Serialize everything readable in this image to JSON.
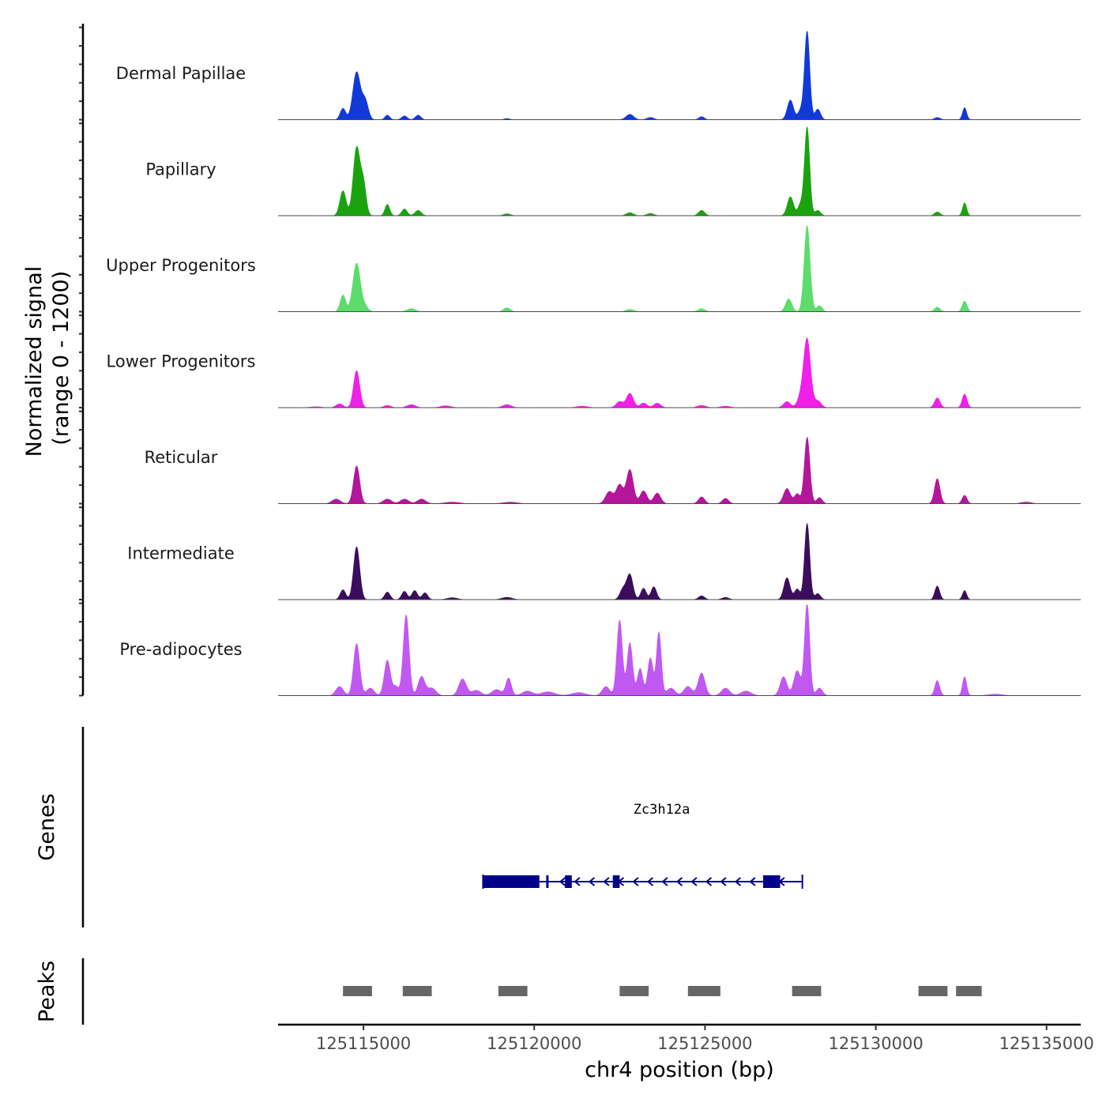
{
  "chart_data": {
    "type": "area",
    "title": "",
    "ylabel_line1": "Normalized signal",
    "ylabel_line2": "(range 0 - 1200)",
    "ylim": [
      0,
      1200
    ],
    "xlabel": "chr4 position (bp)",
    "xlim": [
      125112500,
      125136000
    ],
    "xticks": [
      125115000,
      125120000,
      125125000,
      125130000,
      125135000
    ],
    "xtick_labels": [
      "125115000",
      "125120000",
      "125125000",
      "125130000",
      "125135000"
    ],
    "signal_range": [
      125112500,
      125136000
    ],
    "series": [
      {
        "name": "Dermal Papillae",
        "color": "#1239d8",
        "peaks": [
          [
            125114400,
            150,
            80
          ],
          [
            125114800,
            630,
            110
          ],
          [
            125115050,
            250,
            90
          ],
          [
            125115700,
            60,
            70
          ],
          [
            125116200,
            50,
            80
          ],
          [
            125116600,
            60,
            80
          ],
          [
            125119200,
            15,
            80
          ],
          [
            125122800,
            70,
            110
          ],
          [
            125123400,
            30,
            100
          ],
          [
            125124900,
            40,
            80
          ],
          [
            125127500,
            260,
            90
          ],
          [
            125127800,
            120,
            80
          ],
          [
            125127990,
            1170,
            75
          ],
          [
            125128300,
            140,
            80
          ],
          [
            125131800,
            30,
            80
          ],
          [
            125132600,
            160,
            60
          ]
        ]
      },
      {
        "name": "Papillary",
        "color": "#1aa30e",
        "peaks": [
          [
            125114400,
            330,
            90
          ],
          [
            125114800,
            900,
            100
          ],
          [
            125115000,
            400,
            80
          ],
          [
            125115700,
            150,
            70
          ],
          [
            125116200,
            90,
            80
          ],
          [
            125116600,
            70,
            90
          ],
          [
            125119200,
            25,
            100
          ],
          [
            125122800,
            40,
            100
          ],
          [
            125123400,
            30,
            100
          ],
          [
            125124900,
            70,
            90
          ],
          [
            125127500,
            250,
            90
          ],
          [
            125127800,
            150,
            80
          ],
          [
            125127990,
            1170,
            75
          ],
          [
            125128300,
            70,
            80
          ],
          [
            125131800,
            50,
            80
          ],
          [
            125132600,
            170,
            60
          ]
        ]
      },
      {
        "name": "Upper Progenitors",
        "color": "#5cdc6c",
        "peaks": [
          [
            125114400,
            220,
            80
          ],
          [
            125114800,
            640,
            110
          ],
          [
            125115050,
            60,
            90
          ],
          [
            125116400,
            40,
            120
          ],
          [
            125119200,
            50,
            100
          ],
          [
            125122800,
            30,
            110
          ],
          [
            125124900,
            40,
            100
          ],
          [
            125127450,
            170,
            90
          ],
          [
            125127990,
            1140,
            85
          ],
          [
            125128350,
            80,
            80
          ],
          [
            125131800,
            60,
            80
          ],
          [
            125132600,
            140,
            70
          ]
        ]
      },
      {
        "name": "Lower Progenitors",
        "color": "#f020e8",
        "peaks": [
          [
            125113600,
            12,
            150
          ],
          [
            125114300,
            50,
            100
          ],
          [
            125114800,
            490,
            90
          ],
          [
            125115700,
            30,
            100
          ],
          [
            125116400,
            40,
            120
          ],
          [
            125117400,
            25,
            150
          ],
          [
            125119200,
            40,
            120
          ],
          [
            125121400,
            20,
            150
          ],
          [
            125122500,
            80,
            100
          ],
          [
            125122800,
            190,
            100
          ],
          [
            125123200,
            60,
            100
          ],
          [
            125123600,
            60,
            100
          ],
          [
            125124900,
            30,
            120
          ],
          [
            125125600,
            20,
            130
          ],
          [
            125127400,
            80,
            100
          ],
          [
            125127800,
            130,
            100
          ],
          [
            125127990,
            900,
            100
          ],
          [
            125128300,
            90,
            100
          ],
          [
            125131800,
            130,
            80
          ],
          [
            125132600,
            180,
            70
          ]
        ]
      },
      {
        "name": "Reticular",
        "color": "#b2169b",
        "peaks": [
          [
            125114200,
            60,
            120
          ],
          [
            125114800,
            500,
            90
          ],
          [
            125115700,
            60,
            120
          ],
          [
            125116200,
            60,
            120
          ],
          [
            125116700,
            60,
            120
          ],
          [
            125117600,
            20,
            200
          ],
          [
            125119300,
            20,
            200
          ],
          [
            125122200,
            160,
            110
          ],
          [
            125122500,
            250,
            100
          ],
          [
            125122800,
            450,
            100
          ],
          [
            125123200,
            170,
            100
          ],
          [
            125123600,
            140,
            100
          ],
          [
            125124900,
            90,
            90
          ],
          [
            125125600,
            70,
            90
          ],
          [
            125127400,
            200,
            100
          ],
          [
            125127700,
            130,
            80
          ],
          [
            125127990,
            880,
            80
          ],
          [
            125128350,
            80,
            80
          ],
          [
            125131800,
            330,
            80
          ],
          [
            125132600,
            110,
            70
          ],
          [
            125134400,
            20,
            150
          ]
        ]
      },
      {
        "name": "Intermediate",
        "color": "#3b0d5c",
        "peaks": [
          [
            125114400,
            130,
            80
          ],
          [
            125114800,
            700,
            90
          ],
          [
            125115700,
            100,
            80
          ],
          [
            125116200,
            110,
            80
          ],
          [
            125116500,
            120,
            80
          ],
          [
            125116800,
            90,
            80
          ],
          [
            125117600,
            25,
            150
          ],
          [
            125119200,
            30,
            150
          ],
          [
            125122600,
            140,
            90
          ],
          [
            125122800,
            330,
            90
          ],
          [
            125123200,
            150,
            80
          ],
          [
            125123500,
            170,
            80
          ],
          [
            125124900,
            50,
            90
          ],
          [
            125125600,
            30,
            100
          ],
          [
            125127400,
            290,
            90
          ],
          [
            125127700,
            140,
            80
          ],
          [
            125127990,
            1010,
            75
          ],
          [
            125128300,
            80,
            80
          ],
          [
            125131800,
            180,
            70
          ],
          [
            125132600,
            120,
            60
          ]
        ]
      },
      {
        "name": "Pre-adipocytes",
        "color": "#c158f1",
        "peaks": [
          [
            125114300,
            120,
            110
          ],
          [
            125114800,
            690,
            90
          ],
          [
            125115200,
            100,
            110
          ],
          [
            125115700,
            470,
            90
          ],
          [
            125115950,
            120,
            80
          ],
          [
            125116250,
            1070,
            85
          ],
          [
            125116700,
            250,
            100
          ],
          [
            125117000,
            100,
            120
          ],
          [
            125117900,
            220,
            110
          ],
          [
            125118300,
            70,
            140
          ],
          [
            125118900,
            80,
            140
          ],
          [
            125119250,
            230,
            80
          ],
          [
            125119800,
            60,
            150
          ],
          [
            125120400,
            50,
            200
          ],
          [
            125121300,
            40,
            200
          ],
          [
            125122100,
            120,
            110
          ],
          [
            125122500,
            1000,
            80
          ],
          [
            125122800,
            700,
            80
          ],
          [
            125123100,
            360,
            80
          ],
          [
            125123400,
            500,
            80
          ],
          [
            125123650,
            840,
            70
          ],
          [
            125124000,
            100,
            120
          ],
          [
            125124500,
            120,
            120
          ],
          [
            125124900,
            300,
            100
          ],
          [
            125125600,
            100,
            120
          ],
          [
            125126200,
            60,
            150
          ],
          [
            125127300,
            250,
            100
          ],
          [
            125127700,
            330,
            100
          ],
          [
            125127990,
            1220,
            75
          ],
          [
            125128350,
            100,
            90
          ],
          [
            125131800,
            200,
            70
          ],
          [
            125132600,
            250,
            60
          ],
          [
            125133500,
            20,
            200
          ]
        ]
      }
    ],
    "gene": {
      "name": "Zc3h12a",
      "strand": "-",
      "start": 125118500,
      "end": 125127850,
      "exons": [
        [
          125118500,
          125120150
        ],
        [
          125120350,
          125120420
        ],
        [
          125120900,
          125121100
        ],
        [
          125122300,
          125122500
        ],
        [
          125126700,
          125127200
        ]
      ]
    },
    "peaks_track": [
      [
        125114400,
        125115250
      ],
      [
        125116150,
        125117000
      ],
      [
        125118950,
        125119800
      ],
      [
        125122500,
        125123350
      ],
      [
        125124500,
        125125450
      ],
      [
        125127550,
        125128400
      ],
      [
        125131250,
        125132100
      ],
      [
        125132350,
        125133100
      ]
    ],
    "track_group_labels": [
      "Genes",
      "Peaks"
    ]
  }
}
